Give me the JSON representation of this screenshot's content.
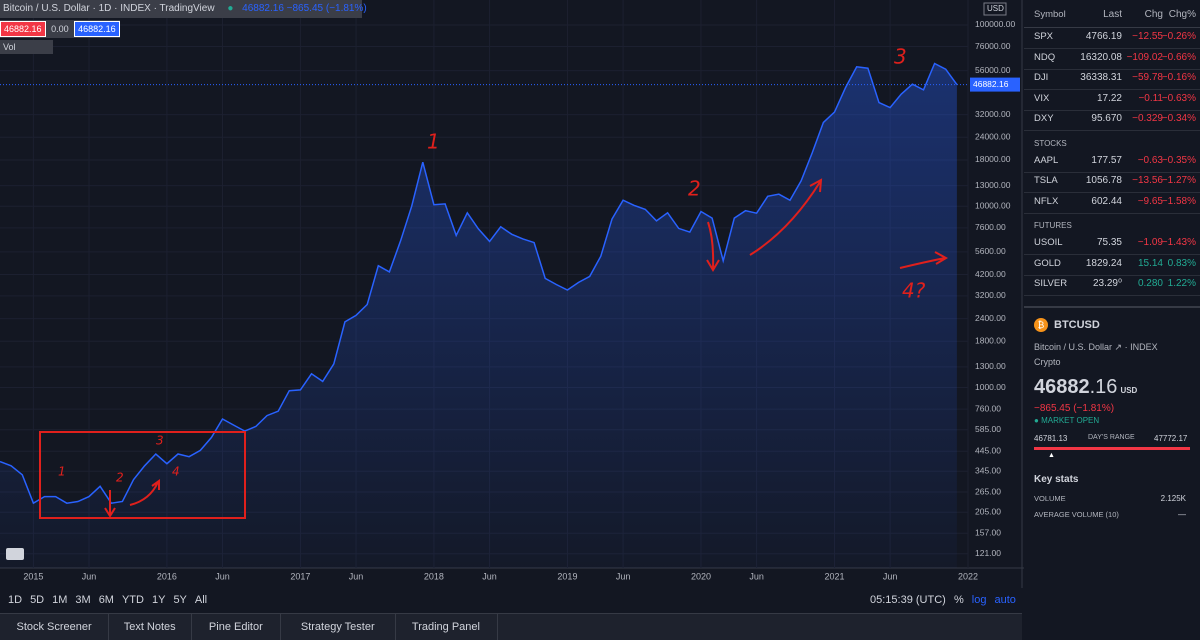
{
  "header": {
    "title": "Bitcoin / U.S. Dollar · 1D · INDEX · TradingView",
    "quote": "46882.16 −865.45 (−1.81%)",
    "bid": "46882.16",
    "spread": "0.00",
    "ask": "46882.16",
    "vol": "Vol"
  },
  "chart_data": {
    "type": "line",
    "log_scale": true,
    "grid": true,
    "x": [
      "2014-10",
      "2014-11",
      "2014-12",
      "2015-01",
      "2015-02",
      "2015-03",
      "2015-04",
      "2015-05",
      "2015-06",
      "2015-07",
      "2015-08",
      "2015-09",
      "2015-10",
      "2015-11",
      "2015-12",
      "2016-01",
      "2016-02",
      "2016-03",
      "2016-04",
      "2016-05",
      "2016-06",
      "2016-07",
      "2016-08",
      "2016-09",
      "2016-10",
      "2016-11",
      "2016-12",
      "2017-01",
      "2017-02",
      "2017-03",
      "2017-04",
      "2017-05",
      "2017-06",
      "2017-07",
      "2017-08",
      "2017-09",
      "2017-10",
      "2017-11",
      "2017-12",
      "2018-01",
      "2018-02",
      "2018-03",
      "2018-04",
      "2018-05",
      "2018-06",
      "2018-07",
      "2018-08",
      "2018-09",
      "2018-10",
      "2018-11",
      "2018-12",
      "2019-01",
      "2019-02",
      "2019-03",
      "2019-04",
      "2019-05",
      "2019-06",
      "2019-07",
      "2019-08",
      "2019-09",
      "2019-10",
      "2019-11",
      "2019-12",
      "2020-01",
      "2020-02",
      "2020-03",
      "2020-04",
      "2020-05",
      "2020-06",
      "2020-07",
      "2020-08",
      "2020-09",
      "2020-10",
      "2020-11",
      "2020-12",
      "2021-01",
      "2021-02",
      "2021-03",
      "2021-04",
      "2021-05",
      "2021-06",
      "2021-07",
      "2021-08",
      "2021-09",
      "2021-10",
      "2021-11",
      "2021-12"
    ],
    "series": [
      {
        "name": "BTCUSD",
        "color": "#2962ff",
        "values": [
          390,
          370,
          330,
          230,
          250,
          250,
          230,
          235,
          250,
          285,
          230,
          235,
          310,
          370,
          430,
          380,
          430,
          415,
          450,
          530,
          670,
          620,
          575,
          610,
          700,
          740,
          960,
          970,
          1190,
          1080,
          1350,
          2300,
          2500,
          2870,
          4700,
          4340,
          6450,
          10000,
          17500,
          10200,
          10300,
          6900,
          9200,
          7500,
          6400,
          7700,
          7000,
          6600,
          6300,
          4000,
          3700,
          3450,
          3800,
          4100,
          5300,
          8500,
          10800,
          10100,
          9600,
          8300,
          9200,
          7550,
          7200,
          9350,
          8600,
          5000,
          8600,
          9450,
          9150,
          11350,
          11650,
          10780,
          13800,
          19700,
          29000,
          33100,
          45200,
          58800,
          57700,
          37300,
          35000,
          41500,
          47100,
          43800,
          61300,
          57000,
          46882
        ]
      }
    ],
    "xlim": [
      "2014-10",
      "2022-01"
    ],
    "xticks": [
      {
        "value": "2015-01",
        "label": "2015"
      },
      {
        "value": "2015-06",
        "label": "Jun"
      },
      {
        "value": "2016-01",
        "label": "2016"
      },
      {
        "value": "2016-06",
        "label": "Jun"
      },
      {
        "value": "2017-01",
        "label": "2017"
      },
      {
        "value": "2017-06",
        "label": "Jun"
      },
      {
        "value": "2018-01",
        "label": "2018"
      },
      {
        "value": "2018-06",
        "label": "Jun"
      },
      {
        "value": "2019-01",
        "label": "2019"
      },
      {
        "value": "2019-06",
        "label": "Jun"
      },
      {
        "value": "2020-01",
        "label": "2020"
      },
      {
        "value": "2020-06",
        "label": "Jun"
      },
      {
        "value": "2021-01",
        "label": "2021"
      },
      {
        "value": "2021-06",
        "label": "Jun"
      },
      {
        "value": "2022-01",
        "label": "2022"
      }
    ],
    "ylim": [
      101,
      137300
    ],
    "yticks": [
      {
        "value": 121,
        "label": "121.00"
      },
      {
        "value": 157,
        "label": "157.00"
      },
      {
        "value": 205,
        "label": "205.00"
      },
      {
        "value": 265,
        "label": "265.00"
      },
      {
        "value": 345,
        "label": "345.00"
      },
      {
        "value": 445,
        "label": "445.00"
      },
      {
        "value": 585,
        "label": "585.00"
      },
      {
        "value": 760,
        "label": "760.00"
      },
      {
        "value": 1000,
        "label": "1000.00"
      },
      {
        "value": 1300,
        "label": "1300.00"
      },
      {
        "value": 1800,
        "label": "1800.00"
      },
      {
        "value": 2400,
        "label": "2400.00"
      },
      {
        "value": 3200,
        "label": "3200.00"
      },
      {
        "value": 4200,
        "label": "4200.00"
      },
      {
        "value": 5600,
        "label": "5600.00"
      },
      {
        "value": 7600,
        "label": "7600.00"
      },
      {
        "value": 10000,
        "label": "10000.00"
      },
      {
        "value": 13000,
        "label": "13000.00"
      },
      {
        "value": 18000,
        "label": "18000.00"
      },
      {
        "value": 24000,
        "label": "24000.00"
      },
      {
        "value": 32000,
        "label": "32000.00"
      },
      {
        "value": 56000,
        "label": "56000.00"
      },
      {
        "value": 76000,
        "label": "76000.00"
      },
      {
        "value": 100000,
        "label": "100000.00"
      }
    ],
    "price_line": 46882.16,
    "currency": "USD"
  },
  "annotations": [
    "1",
    "2",
    "3",
    "4?",
    "1",
    "2",
    "3",
    "4"
  ],
  "toolbar": {
    "ranges": [
      "1D",
      "5D",
      "1M",
      "3M",
      "6M",
      "YTD",
      "1Y",
      "5Y",
      "All"
    ],
    "time": "05:15:39 (UTC)",
    "options": [
      "%",
      "log",
      "auto"
    ]
  },
  "tabs": [
    "Stock Screener",
    "Text Notes",
    "Pine Editor",
    "Strategy Tester",
    "Trading Panel"
  ],
  "watchlist": {
    "columns": [
      "Symbol",
      "Last",
      "Chg",
      "Chg%"
    ],
    "sections": [
      {
        "rows": [
          [
            "SPX",
            "4766.19",
            "−12.55",
            "−0.26%"
          ],
          [
            "NDQ",
            "16320.08",
            "−109.02",
            "−0.66%"
          ],
          [
            "DJI",
            "36338.31",
            "−59.78",
            "−0.16%"
          ],
          [
            "VIX",
            "17.22",
            "−0.11",
            "−0.63%"
          ],
          [
            "DXY",
            "95.670",
            "−0.329",
            "−0.34%"
          ]
        ]
      },
      {
        "title": "STOCKS",
        "rows": [
          [
            "AAPL",
            "177.57",
            "−0.63",
            "−0.35%"
          ],
          [
            "TSLA",
            "1056.78",
            "−13.56",
            "−1.27%"
          ],
          [
            "NFLX",
            "602.44",
            "−9.65",
            "−1.58%"
          ]
        ]
      },
      {
        "title": "FUTURES",
        "rows": [
          [
            "USOIL",
            "75.35",
            "−1.09",
            "−1.43%"
          ],
          [
            "GOLD",
            "1829.24",
            "15.14",
            "0.83%"
          ],
          [
            "SILVER",
            "23.29⁰",
            "0.280",
            "1.22%"
          ]
        ]
      }
    ]
  },
  "details": {
    "symbol": "BTCUSD",
    "name": "Bitcoin / U.S. Dollar",
    "exchange": "INDEX",
    "category": "Crypto",
    "price_main": "46882",
    "price_tail": ".16",
    "currency": "USD",
    "change": "−865.45 (−1.81%)",
    "status": "MARKET OPEN",
    "range_low": "46781.13",
    "range_label": "DAY'S RANGE",
    "range_high": "47772.17",
    "key_stats": "Key stats",
    "stats": [
      [
        "VOLUME",
        "2.125K"
      ],
      [
        "AVERAGE VOLUME (10)",
        "—"
      ]
    ]
  }
}
